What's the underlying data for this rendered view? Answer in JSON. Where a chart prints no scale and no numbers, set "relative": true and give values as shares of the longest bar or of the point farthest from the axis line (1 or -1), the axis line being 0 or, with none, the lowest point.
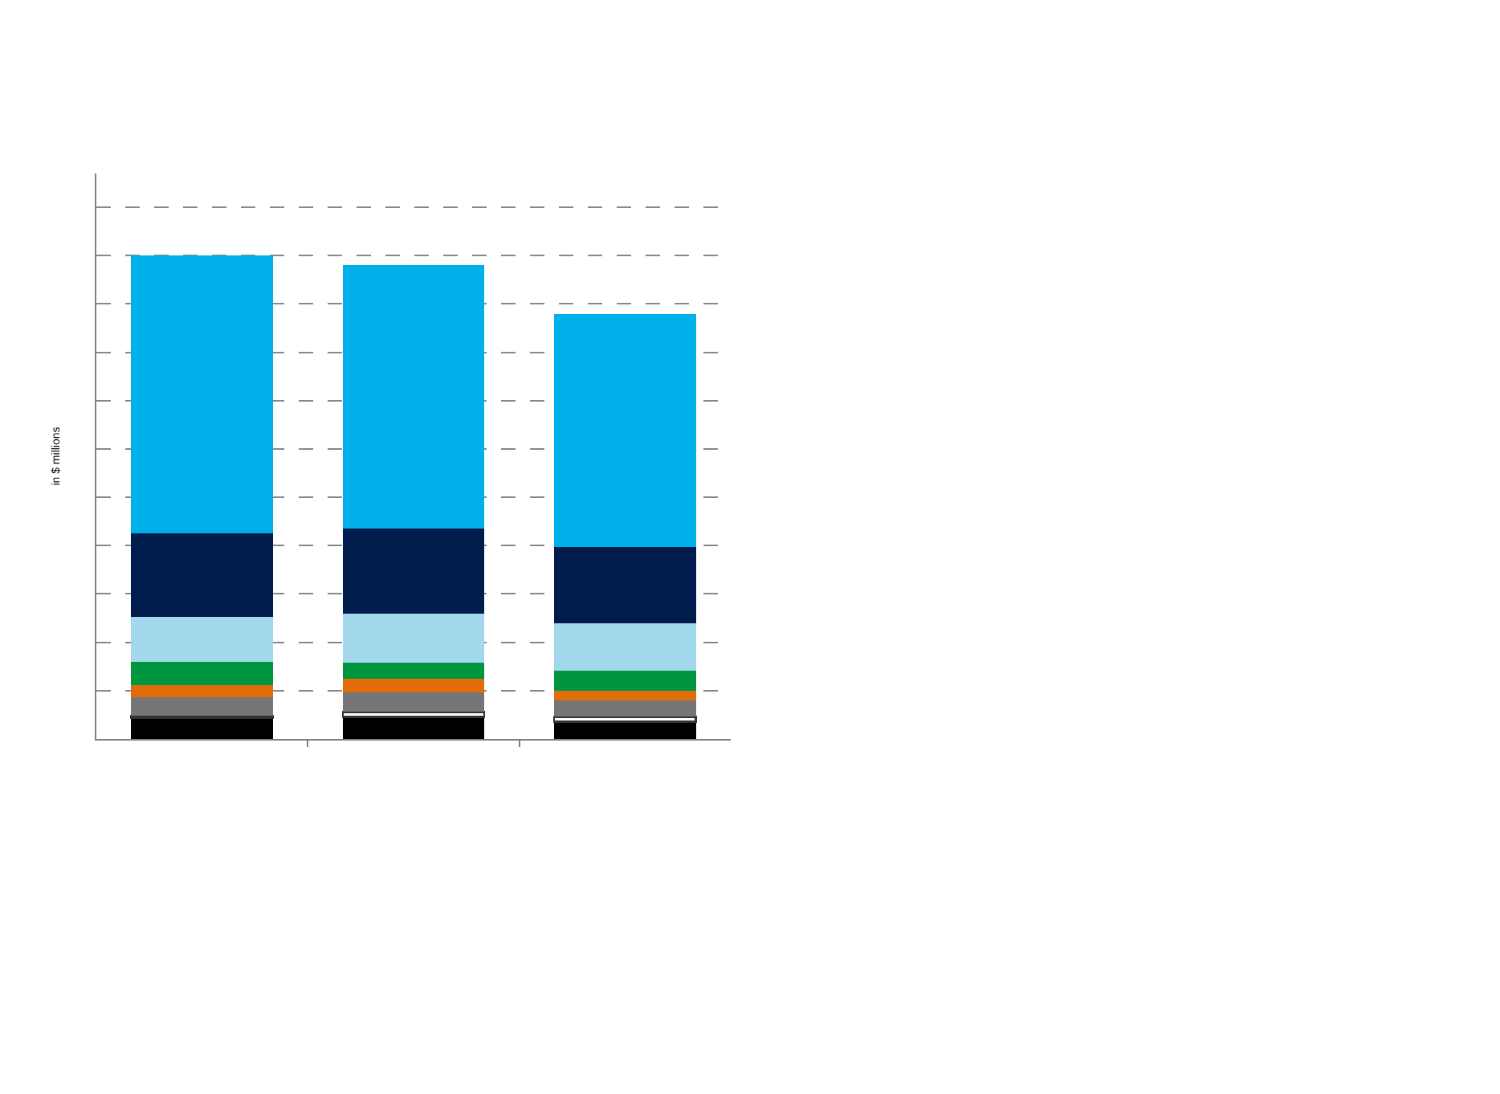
{
  "chart_data": {
    "type": "bar",
    "stacked": true,
    "relative": true,
    "ylabel": "in $ millions",
    "grid": "y",
    "categories": [
      null,
      null,
      null
    ],
    "series": [
      {
        "color": "#000000",
        "values": [
          0.044,
          0.046,
          0.036
        ]
      },
      {
        "color": "#ffffff",
        "values": [
          0.004,
          0.01,
          0.01
        ]
      },
      {
        "color": "#767676",
        "values": [
          0.038,
          0.041,
          0.034
        ]
      },
      {
        "color": "#e26b0a",
        "values": [
          0.026,
          0.027,
          0.02
        ]
      },
      {
        "color": "#00963f",
        "values": [
          0.047,
          0.034,
          0.041
        ]
      },
      {
        "color": "#a3d9ec",
        "values": [
          0.093,
          0.101,
          0.098
        ]
      },
      {
        "color": "#001c4d",
        "values": [
          0.174,
          0.176,
          0.158
        ]
      },
      {
        "color": "#00b0eb",
        "values": [
          0.574,
          0.546,
          0.482
        ]
      }
    ]
  }
}
